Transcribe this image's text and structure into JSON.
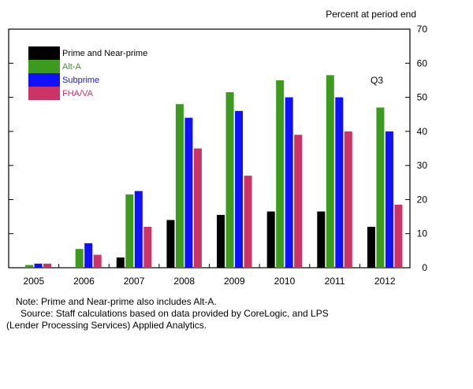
{
  "chart_data": {
    "type": "bar",
    "title": "",
    "unit_label": "Percent at period end",
    "annotation": "Q3",
    "categories": [
      "2005",
      "2006",
      "2007",
      "2008",
      "2009",
      "2010",
      "2011",
      "2012"
    ],
    "series": [
      {
        "name": "Prime and Near-prime",
        "color": "#000000",
        "values": [
          0,
          0,
          3,
          14,
          15.5,
          16.5,
          16.5,
          12
        ]
      },
      {
        "name": "Alt-A",
        "color": "#3c9a1e",
        "values": [
          0.8,
          5.5,
          21.5,
          48,
          51.5,
          55,
          56.5,
          47
        ]
      },
      {
        "name": "Subprime",
        "color": "#1010ff",
        "values": [
          1.2,
          7.2,
          22.5,
          44,
          46,
          50,
          50,
          40
        ]
      },
      {
        "name": "FHA/VA",
        "color": "#cc3366",
        "values": [
          1.2,
          3.8,
          12,
          35,
          27,
          39,
          40,
          18.5
        ]
      }
    ],
    "ylim": [
      0,
      70
    ],
    "yticks": [
      "0",
      "10",
      "20",
      "30",
      "40",
      "50",
      "60",
      "70"
    ],
    "legend_position": "top-left",
    "grid": false
  },
  "notes": {
    "line1": "Note: Prime and Near-prime also includes Alt-A.",
    "line2": "Source: Staff calculations based on data provided by CoreLogic, and LPS",
    "line3": "(Lender Processing Services) Applied Analytics."
  }
}
